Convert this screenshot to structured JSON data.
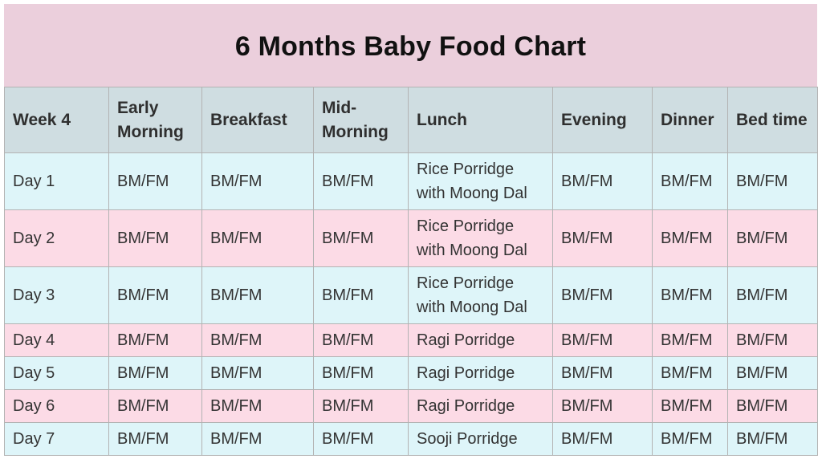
{
  "title": "6 Months Baby Food Chart",
  "table": {
    "headers": [
      "Week 4",
      "Early Morning",
      "Breakfast",
      "Mid-Morning",
      "Lunch",
      "Evening",
      "Dinner",
      "Bed time"
    ],
    "rows": [
      [
        "Day 1",
        "BM/FM",
        "BM/FM",
        "BM/FM",
        "Rice Porridge with Moong Dal",
        "BM/FM",
        "BM/FM",
        "BM/FM"
      ],
      [
        "Day 2",
        "BM/FM",
        "BM/FM",
        "BM/FM",
        "Rice Porridge with Moong Dal",
        "BM/FM",
        "BM/FM",
        "BM/FM"
      ],
      [
        "Day 3",
        "BM/FM",
        "BM/FM",
        "BM/FM",
        "Rice Porridge with Moong Dal",
        "BM/FM",
        "BM/FM",
        "BM/FM"
      ],
      [
        "Day 4",
        "BM/FM",
        "BM/FM",
        "BM/FM",
        "Ragi Porridge",
        "BM/FM",
        "BM/FM",
        "BM/FM"
      ],
      [
        "Day 5",
        "BM/FM",
        "BM/FM",
        "BM/FM",
        "Ragi Porridge",
        "BM/FM",
        "BM/FM",
        "BM/FM"
      ],
      [
        "Day 6",
        "BM/FM",
        "BM/FM",
        "BM/FM",
        "Ragi Porridge",
        "BM/FM",
        "BM/FM",
        "BM/FM"
      ],
      [
        "Day 7",
        "BM/FM",
        "BM/FM",
        "BM/FM",
        "Sooji Porridge",
        "BM/FM",
        "BM/FM",
        "BM/FM"
      ]
    ]
  },
  "colors": {
    "title_band": "#ebcfdc",
    "header_row": "#cfdde1",
    "row_blue": "#def5f9",
    "row_pink": "#fcdbe6",
    "border": "#b3b3b3"
  }
}
